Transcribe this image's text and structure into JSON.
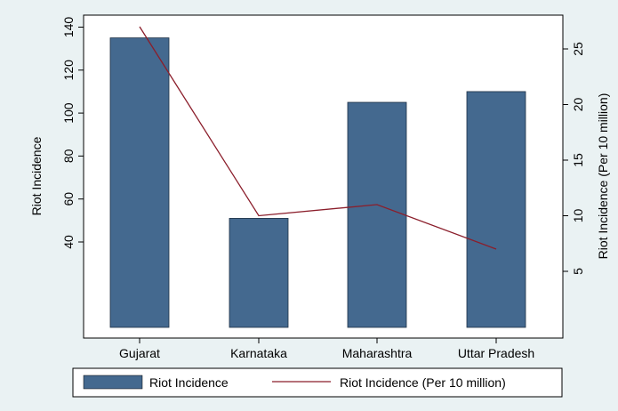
{
  "chart_data": {
    "type": "bar",
    "categories": [
      "Gujarat",
      "Karnataka",
      "Maharashtra",
      "Uttar Pradesh"
    ],
    "series": [
      {
        "name": "Riot Incidence",
        "type": "bar",
        "axis": "left",
        "values": [
          135,
          51,
          105,
          110
        ],
        "color": "#44698f"
      },
      {
        "name": "Riot Incidence (Per 10 million)",
        "type": "line",
        "axis": "right",
        "values": [
          27,
          10,
          11,
          7
        ],
        "color": "#8b1e2b"
      }
    ],
    "ylabel": "Riot Incidence",
    "y2label": "Riot Incidence (Per 10 million)",
    "yticks": [
      40,
      60,
      80,
      100,
      120,
      140
    ],
    "y2ticks": [
      5,
      10,
      15,
      20,
      25
    ],
    "legend_position": "bottom",
    "grid": false
  }
}
